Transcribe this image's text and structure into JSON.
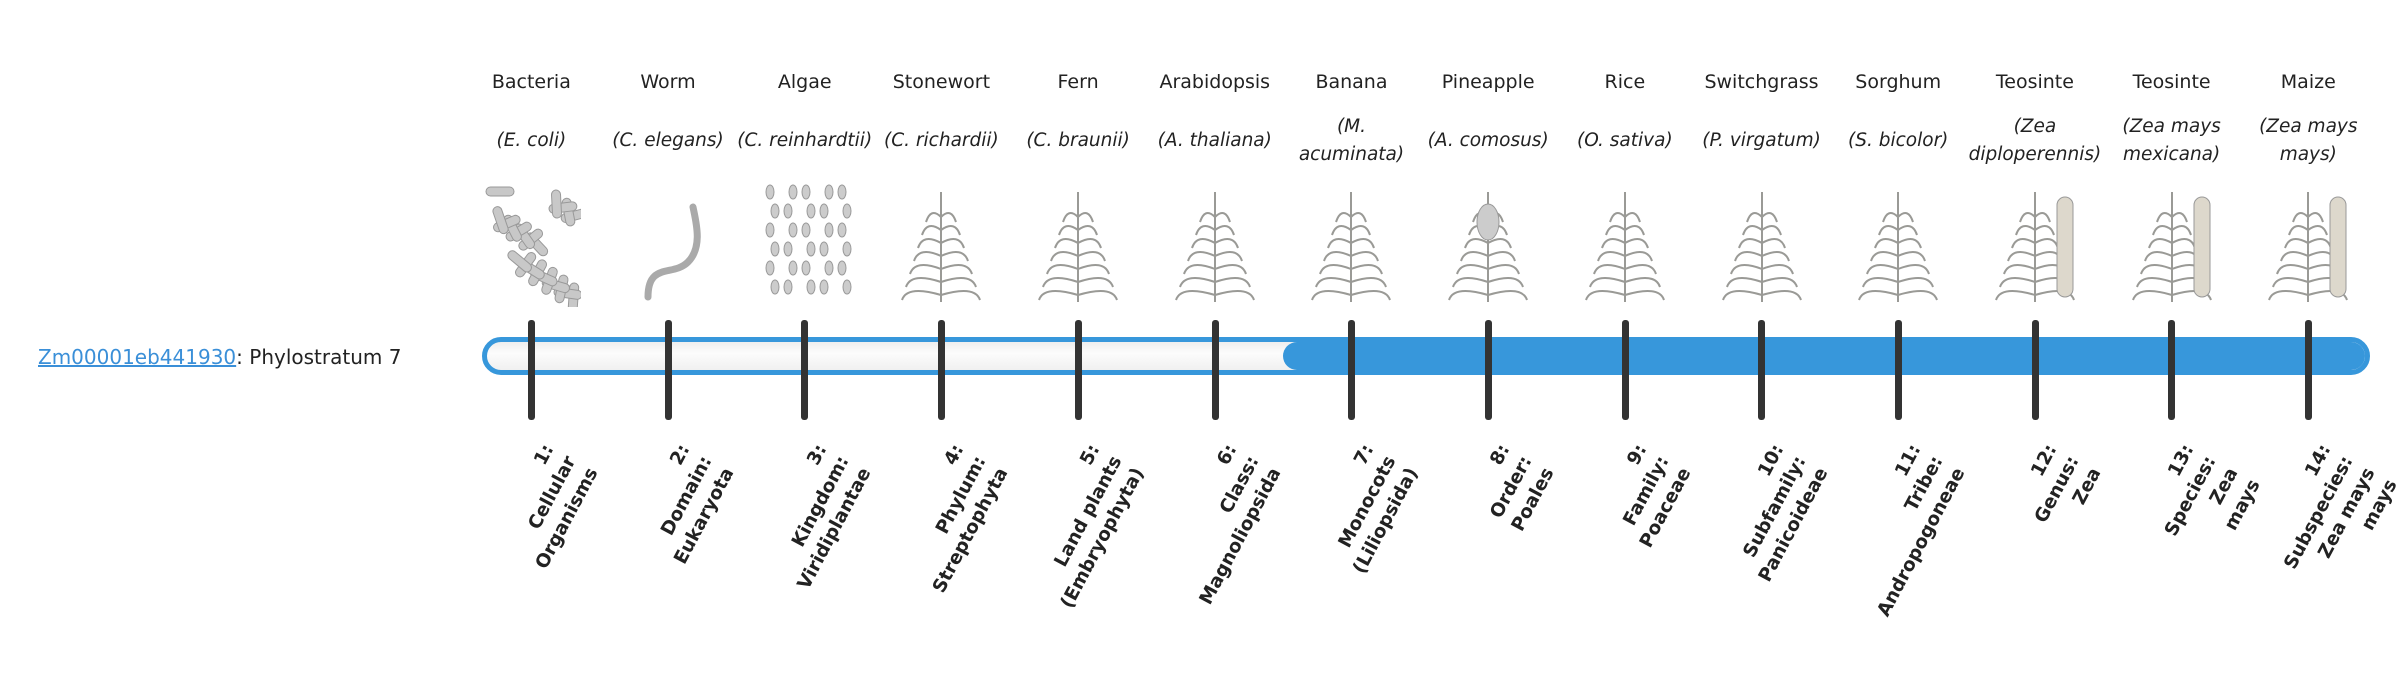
{
  "gene": {
    "id": "Zm00001eb441930",
    "suffix": ": Phylostratum 7",
    "phylostratum": 7
  },
  "colors": {
    "accent": "#3797db",
    "tick": "#333333",
    "link": "#3a8fd8"
  },
  "organisms": [
    {
      "common": "Bacteria",
      "species": "(E. coli)",
      "icon": "bacteria-icon",
      "stratum": "1:\nCellular\nOrganisms"
    },
    {
      "common": "Worm",
      "species": "(C. elegans)",
      "icon": "worm-icon",
      "stratum": "2:\nDomain:\nEukaryota"
    },
    {
      "common": "Algae",
      "species": "(C. reinhardtii)",
      "icon": "algae-icon",
      "stratum": "3:\nKingdom:\nViridiplantae"
    },
    {
      "common": "Stonewort",
      "species": "(C. richardii)",
      "icon": "stonewort-icon",
      "stratum": "4:\nPhylum:\nStreptophyta"
    },
    {
      "common": "Fern",
      "species": "(C. braunii)",
      "icon": "fern-icon",
      "stratum": "5:\nLand plants\n(Embryophyta)"
    },
    {
      "common": "Arabidopsis",
      "species": "(A. thaliana)",
      "icon": "arabidopsis-icon",
      "stratum": "6:\nClass:\nMagnoliopsida"
    },
    {
      "common": "Banana",
      "species": "(M. acuminata)",
      "icon": "banana-icon",
      "stratum": "7:\nMonocots\n(Liliopsida)"
    },
    {
      "common": "Pineapple",
      "species": "(A. comosus)",
      "icon": "pineapple-icon",
      "stratum": "8:\nOrder:\nPoales"
    },
    {
      "common": "Rice",
      "species": "(O. sativa)",
      "icon": "rice-icon",
      "stratum": "9:\nFamily:\nPoaceae"
    },
    {
      "common": "Switchgrass",
      "species": "(P. virgatum)",
      "icon": "switchgrass-icon",
      "stratum": "10:\nSubfamily:\nPanicoideae"
    },
    {
      "common": "Sorghum",
      "species": "(S. bicolor)",
      "icon": "sorghum-icon",
      "stratum": "11:\nTribe:\nAndropogoneae"
    },
    {
      "common": "Teosinte",
      "species": "(Zea diploperennis)",
      "icon": "teosinte-icon",
      "stratum": "12:\nGenus:\nZea"
    },
    {
      "common": "Teosinte",
      "species": "(Zea mays mexicana)",
      "icon": "teosinte-icon",
      "stratum": "13:\nSpecies:\nZea\nmays"
    },
    {
      "common": "Maize",
      "species": "(Zea mays mays)",
      "icon": "maize-icon",
      "stratum": "14:\nSubspecies:\nZea mays\nmays"
    }
  ]
}
